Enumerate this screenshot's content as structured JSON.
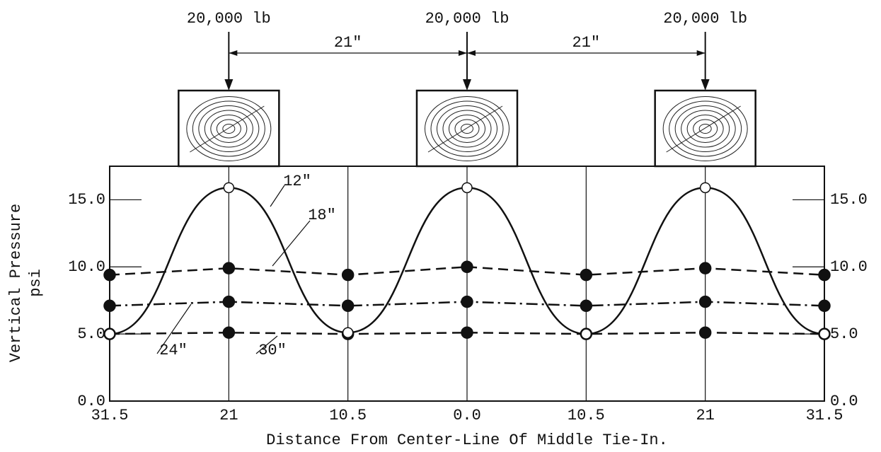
{
  "chart_data": {
    "type": "line",
    "loads": [
      "20,000 lb",
      "20,000 lb",
      "20,000 lb"
    ],
    "spacing": [
      "21\"",
      "21\""
    ],
    "ylabel": [
      "Vertical Pressure",
      "psi"
    ],
    "xlabel": "Distance From Center-Line Of Middle Tie-In.",
    "x": [
      -31.5,
      -21,
      -10.5,
      0,
      10.5,
      21,
      31.5
    ],
    "xlim": [
      -31.5,
      31.5
    ],
    "xticks": [
      {
        "value": -31.5,
        "label": "31.5"
      },
      {
        "value": -21,
        "label": "21"
      },
      {
        "value": -10.5,
        "label": "10.5"
      },
      {
        "value": 0,
        "label": "0.0"
      },
      {
        "value": 10.5,
        "label": "10.5"
      },
      {
        "value": 21,
        "label": "21"
      },
      {
        "value": 31.5,
        "label": "31.5"
      }
    ],
    "ylim": [
      0,
      17.5
    ],
    "yticks": [
      {
        "value": 0,
        "label": "0.0"
      },
      {
        "value": 5,
        "label": "5.0"
      },
      {
        "value": 10,
        "label": "10.0"
      },
      {
        "value": 15,
        "label": "15.0"
      }
    ],
    "series": [
      {
        "name": "18\"",
        "color": "#111111",
        "dash": "14 8",
        "marker": "filled",
        "values": [
          9.4,
          9.9,
          9.4,
          10.0,
          9.4,
          9.9,
          9.4
        ]
      },
      {
        "name": "24\"",
        "color": "#111111",
        "dash": "16 6 3 6",
        "marker": "filled",
        "values": [
          7.1,
          7.4,
          7.1,
          7.4,
          7.1,
          7.4,
          7.1
        ]
      },
      {
        "name": "30\"",
        "color": "#111111",
        "dash": "14 8",
        "marker": "filled",
        "values": [
          5.0,
          5.1,
          5.0,
          5.1,
          5.0,
          5.1,
          5.0
        ]
      },
      {
        "name": "12\"",
        "color": "#111111",
        "dash": "none",
        "marker": "open",
        "values": [
          5.0,
          15.9,
          5.1,
          15.9,
          5.0,
          15.9,
          5.0
        ]
      }
    ]
  }
}
